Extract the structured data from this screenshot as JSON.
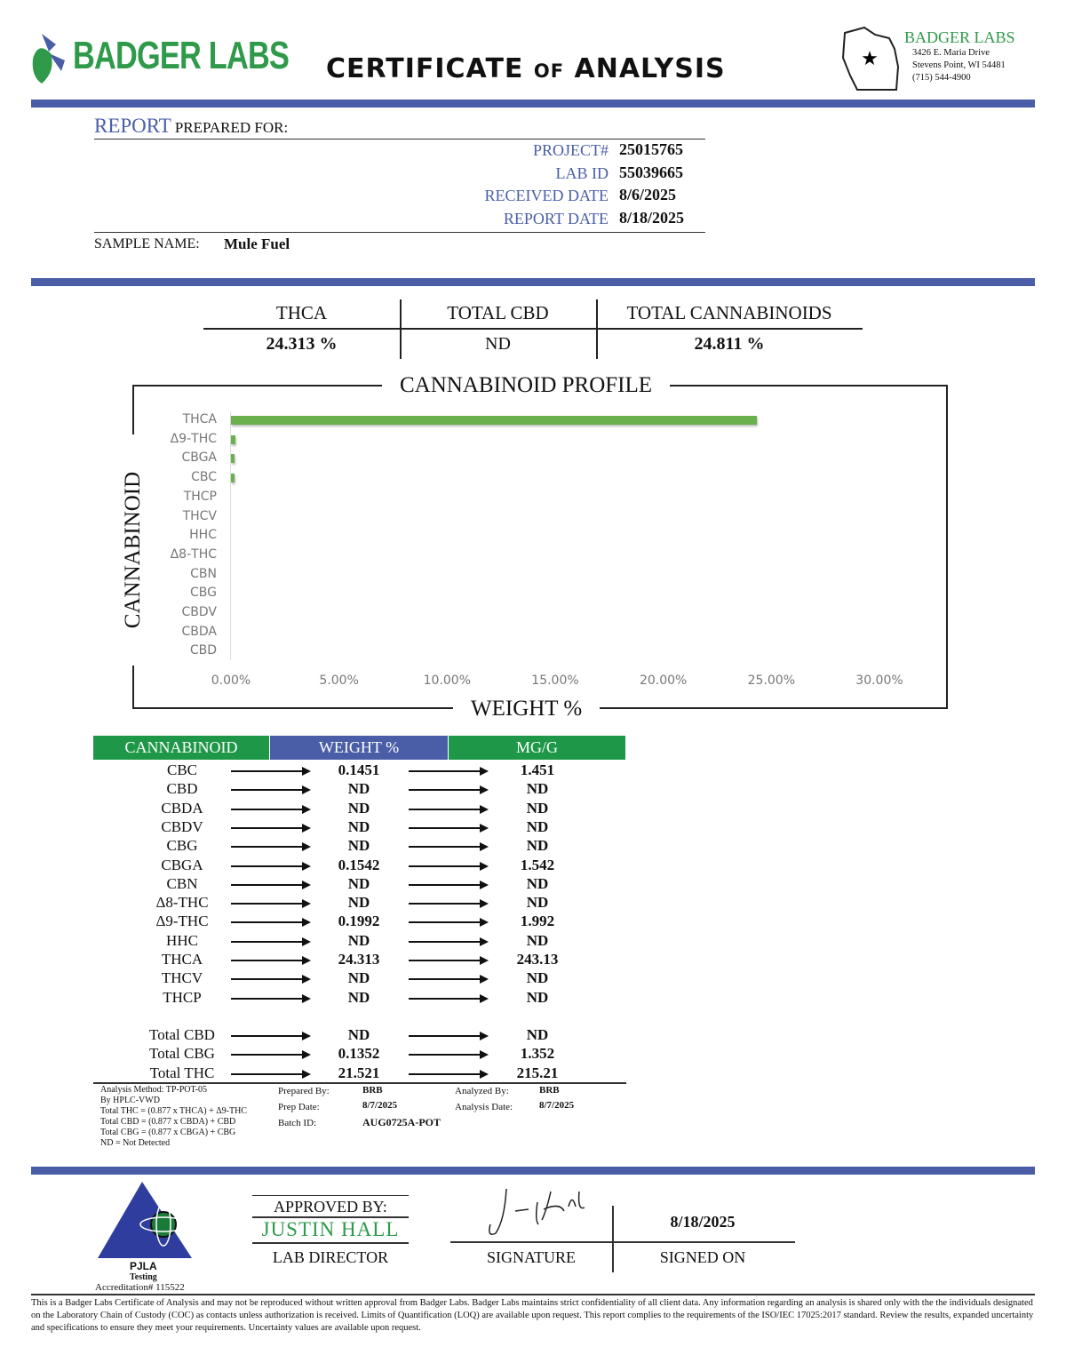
{
  "header": {
    "logo_text": "BADGER LABS",
    "title_main1": "CERTIFICATE",
    "title_of": "OF",
    "title_main2": "ANALYSIS",
    "lab_name": "BADGER LABS",
    "address1": "3426 E. Maria Drive",
    "address2": "Stevens Point, WI 54481",
    "phone": "(715) 544-4900"
  },
  "report": {
    "report_word": "REPORT",
    "prepared_for": "PREPARED FOR:",
    "fields": [
      {
        "label": "PROJECT#",
        "value": "25015765"
      },
      {
        "label": "LAB ID",
        "value": "55039665"
      },
      {
        "label": "RECEIVED DATE",
        "value": "8/6/2025"
      },
      {
        "label": "REPORT DATE",
        "value": "8/18/2025"
      }
    ],
    "sample_label": "SAMPLE NAME:",
    "sample_name": "Mule Fuel"
  },
  "summary": [
    {
      "label": "THCA",
      "value": "24.313 %"
    },
    {
      "label": "TOTAL CBD",
      "value": "ND"
    },
    {
      "label": "TOTAL CANNABINOIDS",
      "value": "24.811 %"
    }
  ],
  "chart_data": {
    "type": "bar",
    "orientation": "horizontal",
    "title": "CANNABINOID PROFILE",
    "xlabel": "WEIGHT %",
    "ylabel": "CANNABINOID",
    "categories": [
      "THCA",
      "Δ9-THC",
      "CBGA",
      "CBC",
      "THCP",
      "THCV",
      "HHC",
      "Δ8-THC",
      "CBN",
      "CBG",
      "CBDV",
      "CBDA",
      "CBD"
    ],
    "values": [
      24.313,
      0.1992,
      0.1542,
      0.1451,
      0,
      0,
      0,
      0,
      0,
      0,
      0,
      0,
      0
    ],
    "xlim": [
      0,
      30
    ],
    "xticks": [
      "0.00%",
      "5.00%",
      "10.00%",
      "15.00%",
      "20.00%",
      "25.00%",
      "30.00%"
    ],
    "bar_color": "#6ab04c",
    "grid": false
  },
  "table": {
    "headers": [
      "CANNABINOID",
      "WEIGHT %",
      "MG/G"
    ],
    "header_colors": [
      "#1e9848",
      "#4a5ea8",
      "#1e9848"
    ],
    "rows": [
      [
        "CBC",
        "0.1451",
        "1.451"
      ],
      [
        "CBD",
        "ND",
        "ND"
      ],
      [
        "CBDA",
        "ND",
        "ND"
      ],
      [
        "CBDV",
        "ND",
        "ND"
      ],
      [
        "CBG",
        "ND",
        "ND"
      ],
      [
        "CBGA",
        "0.1542",
        "1.542"
      ],
      [
        "CBN",
        "ND",
        "ND"
      ],
      [
        "Δ8-THC",
        "ND",
        "ND"
      ],
      [
        "Δ9-THC",
        "0.1992",
        "1.992"
      ],
      [
        "HHC",
        "ND",
        "ND"
      ],
      [
        "THCA",
        "24.313",
        "243.13"
      ],
      [
        "THCV",
        "ND",
        "ND"
      ],
      [
        "THCP",
        "ND",
        "ND"
      ]
    ],
    "totals": [
      [
        "Total CBD",
        "ND",
        "ND"
      ],
      [
        "Total CBG",
        "0.1352",
        "1.352"
      ],
      [
        "Total THC",
        "21.521",
        "215.21"
      ]
    ]
  },
  "method": {
    "lines": [
      "Analysis Method: TP-POT-05",
      "By HPLC-VWD",
      "Total THC = (0.877 x  THCA) + Δ9-THC",
      "Total CBD = (0.877 x  CBDA) + CBD",
      "Total CBG = (0.877 x  CBGA) + CBG",
      "ND = Not Detected"
    ],
    "prepared_by_label": "Prepared By:",
    "prepared_by": "BRB",
    "prep_date_label": "Prep Date:",
    "prep_date": "8/7/2025",
    "batch_label": "Batch ID:",
    "batch": "AUG0725A-POT",
    "analyzed_by_label": "Analyzed By:",
    "analyzed_by": "BRB",
    "analysis_date_label": "Analysis Date:",
    "analysis_date": "8/7/2025"
  },
  "approval": {
    "pjla": "PJLA",
    "testing": "Testing",
    "accreditation": "Accreditation# 115522",
    "approved_by": "APPROVED BY:",
    "name": "JUSTIN HALL",
    "role": "LAB DIRECTOR",
    "signature_label": "SIGNATURE",
    "signed_date": "8/18/2025",
    "signed_on_label": "SIGNED ON"
  },
  "footer": "This is a Badger Labs Certificate of Analysis and may not be reproduced without written approval from Badger Labs. Badger Labs maintains strict confidentiality of all client data. Any information regarding an analysis is shared only with the the individuals designated on the Laboratory Chain of Custody (COC) as contacts unless authorization is received. Limits of Quantification (LOQ) are available upon request. This report complies to the requirements of the ISO/IEC 17025:2017 standard. Review the results, expanded uncertainty and specifications to ensure they meet your requirements. Uncertainty values are available upon request."
}
